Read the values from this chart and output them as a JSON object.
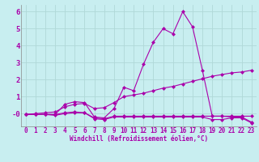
{
  "background_color": "#c8eef0",
  "grid_color": "#b0d8d8",
  "line_color": "#aa00aa",
  "marker_size": 2.5,
  "x_hours": [
    0,
    1,
    2,
    3,
    4,
    5,
    6,
    7,
    8,
    9,
    10,
    11,
    12,
    13,
    14,
    15,
    16,
    17,
    18,
    19,
    20,
    21,
    22,
    23
  ],
  "line1": [
    -0.05,
    -0.05,
    -0.05,
    -0.05,
    0.55,
    0.7,
    0.65,
    -0.2,
    -0.25,
    0.3,
    1.55,
    1.35,
    2.9,
    4.2,
    5.0,
    4.7,
    6.0,
    5.1,
    2.55,
    -0.15,
    -0.15,
    -0.2,
    -0.2,
    -0.5
  ],
  "line2": [
    -0.05,
    -0.05,
    -0.05,
    -0.05,
    0.05,
    0.1,
    0.05,
    -0.25,
    -0.3,
    -0.15,
    -0.15,
    -0.15,
    -0.15,
    -0.15,
    -0.15,
    -0.15,
    -0.15,
    -0.15,
    -0.15,
    -0.15,
    -0.15,
    -0.15,
    -0.15,
    -0.15
  ],
  "line3": [
    -0.05,
    0.0,
    0.05,
    0.1,
    0.4,
    0.55,
    0.6,
    0.3,
    0.35,
    0.65,
    1.0,
    1.1,
    1.2,
    1.35,
    1.5,
    1.6,
    1.75,
    1.9,
    2.05,
    2.2,
    2.3,
    2.4,
    2.45,
    2.55
  ],
  "line4": [
    -0.05,
    -0.05,
    -0.05,
    -0.1,
    0.0,
    0.05,
    0.05,
    -0.3,
    -0.35,
    -0.2,
    -0.2,
    -0.2,
    -0.2,
    -0.2,
    -0.2,
    -0.2,
    -0.2,
    -0.2,
    -0.2,
    -0.35,
    -0.35,
    -0.25,
    -0.25,
    -0.55
  ],
  "ylim": [
    -0.75,
    6.4
  ],
  "xlim": [
    -0.5,
    23.5
  ],
  "yticks": [
    0,
    1,
    2,
    3,
    4,
    5,
    6
  ],
  "ytick_labels": [
    "-0",
    "1",
    "2",
    "3",
    "4",
    "5",
    "6"
  ],
  "xticks": [
    0,
    1,
    2,
    3,
    4,
    5,
    6,
    7,
    8,
    9,
    10,
    11,
    12,
    13,
    14,
    15,
    16,
    17,
    18,
    19,
    20,
    21,
    22,
    23
  ],
  "xlabel": "Windchill (Refroidissement éolien,°C)",
  "xlabel_fontsize": 5.5,
  "tick_fontsize": 5.5,
  "ytick_fontsize": 6.5
}
